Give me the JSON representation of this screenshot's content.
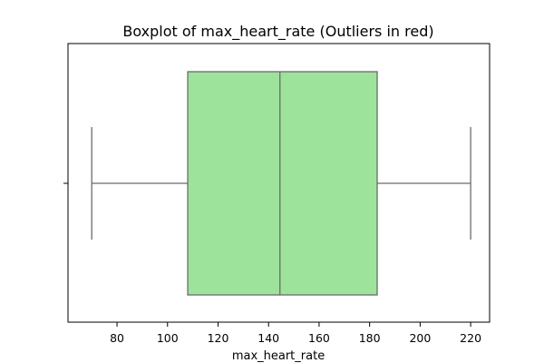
{
  "chart_data": {
    "type": "box",
    "title": "Boxplot of max_heart_rate (Outliers in red)",
    "xlabel": "max_heart_rate",
    "ylabel": "",
    "orientation": "horizontal",
    "xlim": [
      60.6,
      227.5
    ],
    "xticks": [
      80,
      100,
      120,
      140,
      160,
      180,
      200,
      220
    ],
    "box": {
      "whisker_low": 70,
      "q1": 108,
      "median": 144.5,
      "q3": 183,
      "whisker_high": 220
    },
    "outliers": [],
    "grid": false,
    "legend": "none"
  },
  "colors": {
    "box_fill": "#9de39b",
    "line": "#6b6b6b",
    "frame": "#000000"
  }
}
